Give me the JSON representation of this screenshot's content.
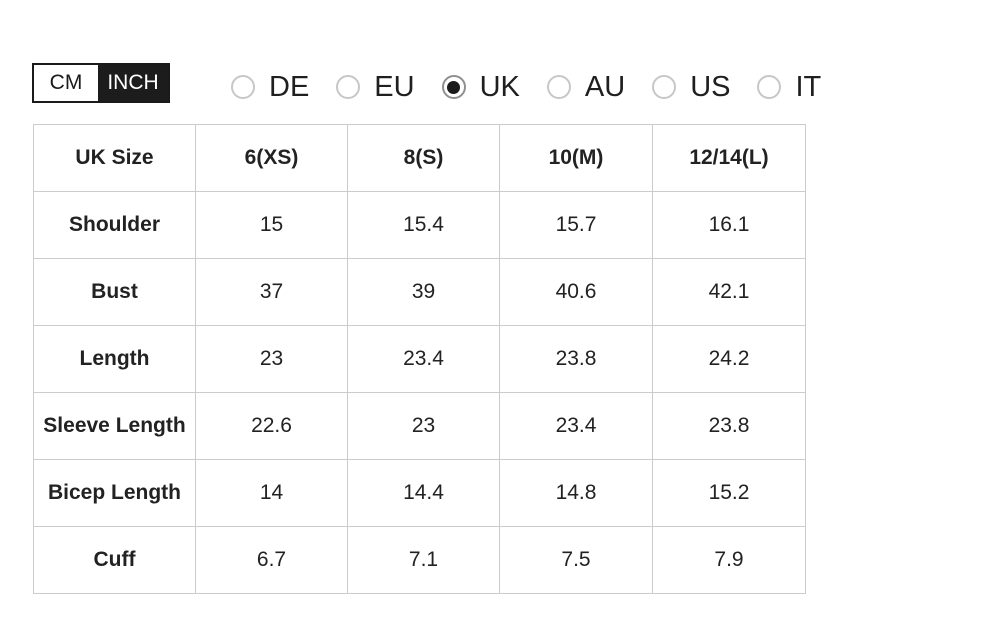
{
  "unit_toggle": {
    "options": [
      {
        "label": "CM",
        "active": false
      },
      {
        "label": "INCH",
        "active": true
      }
    ]
  },
  "regions": {
    "options": [
      {
        "label": "DE",
        "selected": false
      },
      {
        "label": "EU",
        "selected": false
      },
      {
        "label": "UK",
        "selected": true
      },
      {
        "label": "AU",
        "selected": false
      },
      {
        "label": "US",
        "selected": false
      },
      {
        "label": "IT",
        "selected": false
      }
    ]
  },
  "size_table": {
    "header": [
      "UK Size",
      "6(XS)",
      "8(S)",
      "10(M)",
      "12/14(L)"
    ],
    "rows": [
      {
        "label": "Shoulder",
        "values": [
          "15",
          "15.4",
          "15.7",
          "16.1"
        ]
      },
      {
        "label": "Bust",
        "values": [
          "37",
          "39",
          "40.6",
          "42.1"
        ]
      },
      {
        "label": "Length",
        "values": [
          "23",
          "23.4",
          "23.8",
          "24.2"
        ]
      },
      {
        "label": "Sleeve Length",
        "values": [
          "22.6",
          "23",
          "23.4",
          "23.8"
        ]
      },
      {
        "label": "Bicep Length",
        "values": [
          "14",
          "14.4",
          "14.8",
          "15.2"
        ]
      },
      {
        "label": "Cuff",
        "values": [
          "6.7",
          "7.1",
          "7.5",
          "7.9"
        ]
      }
    ]
  },
  "colors": {
    "toggle_active_bg": "#1c1c1c",
    "toggle_border": "#1a1a1a",
    "table_border": "#cccccc",
    "text": "#222222",
    "radio_border": "#c7c7c7",
    "radio_selected_ring": "#8f8f8f",
    "radio_dot": "#1b1b1b"
  }
}
